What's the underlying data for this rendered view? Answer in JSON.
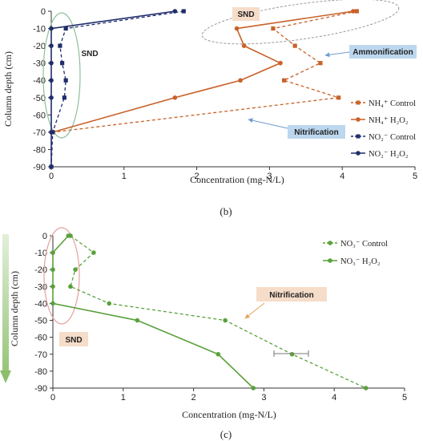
{
  "colors": {
    "nh4": "#c8622a",
    "no2": "#1f2d6b",
    "no3": "#5aa13b",
    "ann_orange_bg": "#f6ddc9",
    "ann_blue_bg": "#bcd7ee",
    "sn_ellipse": "#8fbf9a",
    "snd_b_ellipse": "#999999",
    "snd_c_ellipse": "#e6a0a0",
    "down_arrow": "#8bbf6a"
  },
  "chart_data": [
    {
      "type": "line",
      "panel_label": "(b)",
      "xlabel": "Concentration (mg-N/L)",
      "ylabel": "Column depth (cm)",
      "xlim": [
        0,
        5
      ],
      "ylim": [
        -90,
        0
      ],
      "xticks": [
        "0",
        "1",
        "2",
        "3",
        "4",
        "5"
      ],
      "yticks": [
        "0",
        "-10",
        "-20",
        "-30",
        "-40",
        "-50",
        "-60",
        "-70",
        "-80",
        "-90"
      ],
      "grid": false,
      "legend_position": "right",
      "series": [
        {
          "name": "NH₄⁺ Control",
          "style": "dashed",
          "marker": "square",
          "color_key": "nh4",
          "x": [
            4.2,
            3.05,
            3.35,
            3.7,
            3.2,
            3.95,
            0.02
          ],
          "y": [
            0,
            -10,
            -20,
            -30,
            -40,
            -50,
            -70
          ]
        },
        {
          "name": "NH₄⁺ H₂O₂",
          "style": "solid",
          "marker": "circle",
          "color_key": "nh4",
          "x": [
            4.15,
            2.55,
            2.65,
            3.15,
            2.6,
            1.7,
            0.02
          ],
          "y": [
            0,
            -10,
            -20,
            -30,
            -40,
            -50,
            -70
          ]
        },
        {
          "name": "NO₂⁻ Control",
          "style": "dashed",
          "marker": "square",
          "color_key": "no2",
          "x": [
            1.82,
            0.2,
            0.12,
            0.15,
            0.2,
            0.18,
            0.02,
            0.0
          ],
          "y": [
            0,
            -10,
            -20,
            -30,
            -40,
            -50,
            -70,
            -90
          ]
        },
        {
          "name": "NO₂⁻ H₂O₂",
          "style": "solid",
          "marker": "circle",
          "color_key": "no2",
          "x": [
            1.7,
            0.0,
            0.0,
            0.0,
            0.0,
            0.0,
            0.0,
            0.0
          ],
          "y": [
            0,
            -10,
            -20,
            -30,
            -40,
            -50,
            -70,
            -90
          ]
        }
      ],
      "annotations": [
        {
          "text": "SND",
          "style": "orange-box"
        },
        {
          "text": "SND",
          "style": "plain"
        },
        {
          "text": "Ammonification",
          "style": "blue-box"
        },
        {
          "text": "Nitrification",
          "style": "blue-box"
        }
      ]
    },
    {
      "type": "line",
      "panel_label": "(c)",
      "xlabel": "Concentration (mg-N/L)",
      "ylabel": "Column depth (cm)",
      "xlim": [
        0,
        5
      ],
      "ylim": [
        -90,
        0
      ],
      "xticks": [
        "0",
        "1",
        "2",
        "3",
        "4",
        "5"
      ],
      "yticks": [
        "0",
        "-10",
        "-20",
        "-30",
        "-40",
        "-50",
        "-60",
        "-70",
        "-80",
        "-90"
      ],
      "grid": false,
      "legend_position": "top-right",
      "series": [
        {
          "name": "NO₃⁻ Control",
          "style": "dashed",
          "marker": "circle",
          "color_key": "no3",
          "x": [
            0.25,
            0.58,
            0.32,
            0.25,
            0.8,
            2.45,
            3.4,
            4.45
          ],
          "y": [
            0,
            -10,
            -20,
            -30,
            -40,
            -50,
            -70,
            -90
          ]
        },
        {
          "name": "NO₃⁻ H₂O₂",
          "style": "solid",
          "marker": "circle",
          "color_key": "no3",
          "x": [
            0.22,
            0.0,
            0.0,
            0.0,
            0.0,
            1.2,
            2.35,
            2.85
          ],
          "y": [
            0,
            -10,
            -20,
            -30,
            -40,
            -50,
            -70,
            -90
          ]
        }
      ],
      "annotations": [
        {
          "text": "Nitrification",
          "style": "orange-box"
        },
        {
          "text": "SND",
          "style": "orange-box"
        }
      ]
    }
  ]
}
